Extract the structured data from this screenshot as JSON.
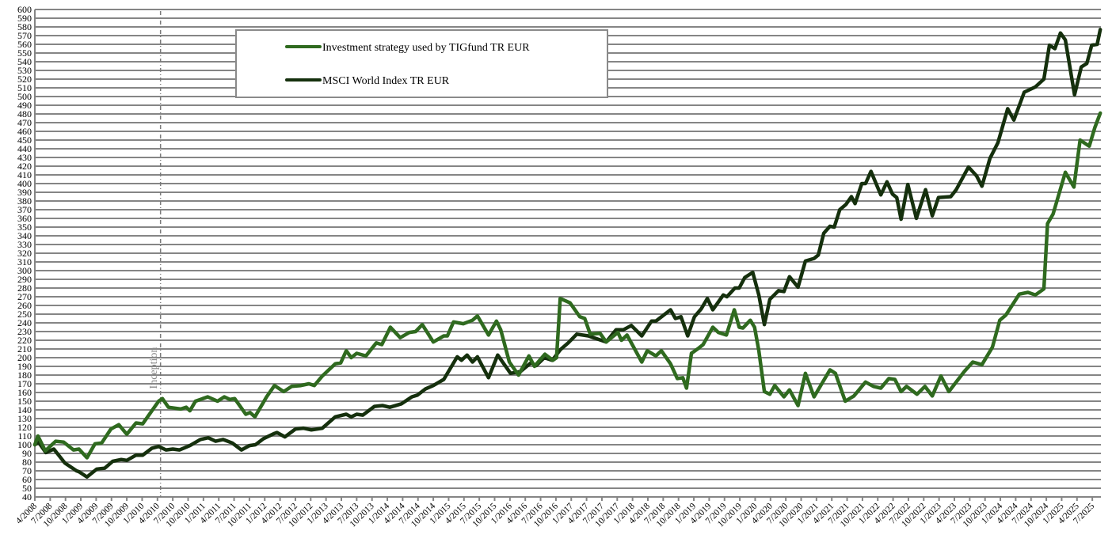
{
  "chart_data": {
    "type": "line",
    "title": "",
    "xlabel": "",
    "ylabel": "",
    "x_unit": "decimal year",
    "xlim": [
      2008.25,
      2025.63
    ],
    "ylim": [
      40,
      600
    ],
    "y_ticks": [
      40,
      50,
      60,
      70,
      80,
      90,
      100,
      110,
      120,
      130,
      140,
      150,
      160,
      170,
      180,
      190,
      200,
      210,
      220,
      230,
      240,
      250,
      260,
      270,
      280,
      290,
      300,
      310,
      320,
      330,
      340,
      350,
      360,
      370,
      380,
      390,
      400,
      410,
      420,
      430,
      440,
      450,
      460,
      470,
      480,
      490,
      500,
      510,
      520,
      530,
      540,
      550,
      560,
      570,
      580,
      590,
      600
    ],
    "x_tick_start": 2008.25,
    "x_tick_step": 0.25,
    "x_tick_labels": [
      "4/2008",
      "7/2008",
      "10/2008",
      "1/2009",
      "4/2009",
      "7/2009",
      "10/2009",
      "1/2010",
      "4/2010",
      "7/2010",
      "10/2010",
      "1/2011",
      "4/2011",
      "7/2011",
      "10/2011",
      "1/2012",
      "4/2012",
      "7/2012",
      "10/2012",
      "1/2013",
      "4/2013",
      "7/2013",
      "10/2013",
      "1/2014",
      "4/2014",
      "7/2014",
      "10/2014",
      "1/2015",
      "4/2015",
      "7/2015",
      "10/2015",
      "1/2016",
      "4/2016",
      "7/2016",
      "10/2016",
      "1/2017",
      "4/2017",
      "7/2017",
      "10/2017",
      "1/2018",
      "4/2018",
      "7/2018",
      "10/2018",
      "1/2019",
      "4/2019",
      "7/2019",
      "10/2019",
      "1/2020",
      "4/2020",
      "7/2020",
      "10/2020",
      "1/2021",
      "4/2021",
      "7/2021",
      "10/2021",
      "1/2022",
      "4/2022",
      "7/2022",
      "10/2022",
      "1/2023",
      "4/2023",
      "7/2023",
      "10/2023",
      "1/2024",
      "4/2024",
      "7/2024",
      "10/2024",
      "1/2025",
      "4/2025",
      "7/2025"
    ],
    "grid": "horizontal",
    "legend_placement": "top-center",
    "annotations": [
      {
        "label": "Inception",
        "x": 2010.3
      }
    ],
    "series": [
      {
        "name": "Investment strategy used by TIGfund TR EUR",
        "color": "#2f6a1f",
        "points": [
          [
            2008.25,
            100
          ],
          [
            2008.3,
            110
          ],
          [
            2008.42,
            93
          ],
          [
            2008.59,
            104
          ],
          [
            2008.72,
            103
          ],
          [
            2008.88,
            94
          ],
          [
            2008.97,
            95
          ],
          [
            2009.1,
            85
          ],
          [
            2009.23,
            101
          ],
          [
            2009.34,
            102
          ],
          [
            2009.49,
            118
          ],
          [
            2009.62,
            123
          ],
          [
            2009.75,
            112
          ],
          [
            2009.9,
            125
          ],
          [
            2010.01,
            124
          ],
          [
            2010.27,
            150
          ],
          [
            2010.33,
            153
          ],
          [
            2010.43,
            143
          ],
          [
            2010.63,
            141
          ],
          [
            2010.72,
            143
          ],
          [
            2010.78,
            139
          ],
          [
            2010.87,
            150
          ],
          [
            2011.07,
            155
          ],
          [
            2011.23,
            150
          ],
          [
            2011.34,
            155
          ],
          [
            2011.43,
            152
          ],
          [
            2011.51,
            153
          ],
          [
            2011.69,
            135
          ],
          [
            2011.76,
            137
          ],
          [
            2011.84,
            132
          ],
          [
            2012.03,
            155
          ],
          [
            2012.16,
            168
          ],
          [
            2012.31,
            161
          ],
          [
            2012.44,
            167
          ],
          [
            2012.59,
            168
          ],
          [
            2012.72,
            170
          ],
          [
            2012.81,
            168
          ],
          [
            2012.94,
            179
          ],
          [
            2013.15,
            193
          ],
          [
            2013.24,
            194
          ],
          [
            2013.33,
            208
          ],
          [
            2013.41,
            200
          ],
          [
            2013.5,
            205
          ],
          [
            2013.65,
            202
          ],
          [
            2013.82,
            217
          ],
          [
            2013.91,
            215
          ],
          [
            2014.05,
            235
          ],
          [
            2014.21,
            223
          ],
          [
            2014.36,
            229
          ],
          [
            2014.46,
            230
          ],
          [
            2014.57,
            238
          ],
          [
            2014.75,
            218
          ],
          [
            2014.92,
            225
          ],
          [
            2014.98,
            225
          ],
          [
            2015.08,
            241
          ],
          [
            2015.24,
            239
          ],
          [
            2015.39,
            243
          ],
          [
            2015.47,
            248
          ],
          [
            2015.65,
            226
          ],
          [
            2015.78,
            242
          ],
          [
            2015.85,
            232
          ],
          [
            2015.99,
            195
          ],
          [
            2016.14,
            180
          ],
          [
            2016.31,
            202
          ],
          [
            2016.4,
            190
          ],
          [
            2016.57,
            204
          ],
          [
            2016.7,
            197
          ],
          [
            2016.76,
            200
          ],
          [
            2016.82,
            268
          ],
          [
            2016.98,
            263
          ],
          [
            2017.14,
            247
          ],
          [
            2017.22,
            245
          ],
          [
            2017.31,
            227
          ],
          [
            2017.47,
            228
          ],
          [
            2017.57,
            218
          ],
          [
            2017.76,
            229
          ],
          [
            2017.82,
            220
          ],
          [
            2017.91,
            226
          ],
          [
            2018.15,
            195
          ],
          [
            2018.24,
            208
          ],
          [
            2018.38,
            202
          ],
          [
            2018.47,
            208
          ],
          [
            2018.62,
            193
          ],
          [
            2018.73,
            176
          ],
          [
            2018.82,
            177
          ],
          [
            2018.88,
            165
          ],
          [
            2018.96,
            205
          ],
          [
            2019.08,
            211
          ],
          [
            2019.15,
            215
          ],
          [
            2019.31,
            235
          ],
          [
            2019.4,
            229
          ],
          [
            2019.53,
            226
          ],
          [
            2019.66,
            255
          ],
          [
            2019.74,
            235
          ],
          [
            2019.8,
            234
          ],
          [
            2019.92,
            243
          ],
          [
            2019.99,
            235
          ],
          [
            2020.06,
            208
          ],
          [
            2020.15,
            161
          ],
          [
            2020.24,
            158
          ],
          [
            2020.32,
            168
          ],
          [
            2020.47,
            155
          ],
          [
            2020.56,
            163
          ],
          [
            2020.7,
            145
          ],
          [
            2020.82,
            182
          ],
          [
            2020.96,
            155
          ],
          [
            2021.22,
            186
          ],
          [
            2021.31,
            182
          ],
          [
            2021.47,
            150
          ],
          [
            2021.61,
            156
          ],
          [
            2021.8,
            172
          ],
          [
            2021.93,
            167
          ],
          [
            2022.05,
            165
          ],
          [
            2022.18,
            176
          ],
          [
            2022.28,
            175
          ],
          [
            2022.38,
            161
          ],
          [
            2022.47,
            167
          ],
          [
            2022.64,
            158
          ],
          [
            2022.77,
            167
          ],
          [
            2022.89,
            156
          ],
          [
            2023.03,
            179
          ],
          [
            2023.16,
            161
          ],
          [
            2023.41,
            184
          ],
          [
            2023.55,
            195
          ],
          [
            2023.7,
            192
          ],
          [
            2023.87,
            212
          ],
          [
            2023.99,
            243
          ],
          [
            2024.09,
            249
          ],
          [
            2024.31,
            273
          ],
          [
            2024.45,
            275
          ],
          [
            2024.57,
            272
          ],
          [
            2024.71,
            279
          ],
          [
            2024.77,
            354
          ],
          [
            2024.86,
            365
          ],
          [
            2025.06,
            413
          ],
          [
            2025.2,
            396
          ],
          [
            2025.3,
            450
          ],
          [
            2025.45,
            443
          ],
          [
            2025.54,
            464
          ],
          [
            2025.63,
            481
          ]
        ]
      },
      {
        "name": "MSCI World Index TR EUR",
        "color": "#15300d",
        "points": [
          [
            2008.25,
            100
          ],
          [
            2008.31,
            103
          ],
          [
            2008.43,
            91
          ],
          [
            2008.56,
            95
          ],
          [
            2008.74,
            79
          ],
          [
            2008.93,
            70
          ],
          [
            2008.97,
            69
          ],
          [
            2009.1,
            63
          ],
          [
            2009.26,
            72
          ],
          [
            2009.39,
            73
          ],
          [
            2009.52,
            81
          ],
          [
            2009.66,
            83
          ],
          [
            2009.75,
            82
          ],
          [
            2009.9,
            88
          ],
          [
            2010.01,
            88
          ],
          [
            2010.16,
            96
          ],
          [
            2010.27,
            98
          ],
          [
            2010.39,
            94
          ],
          [
            2010.5,
            95
          ],
          [
            2010.61,
            94
          ],
          [
            2010.78,
            99
          ],
          [
            2010.95,
            106
          ],
          [
            2011.08,
            108
          ],
          [
            2011.2,
            104
          ],
          [
            2011.32,
            106
          ],
          [
            2011.47,
            102
          ],
          [
            2011.62,
            94
          ],
          [
            2011.75,
            99
          ],
          [
            2011.85,
            100
          ],
          [
            2011.98,
            107
          ],
          [
            2012.16,
            113
          ],
          [
            2012.2,
            114
          ],
          [
            2012.33,
            109
          ],
          [
            2012.5,
            118
          ],
          [
            2012.63,
            119
          ],
          [
            2012.76,
            117
          ],
          [
            2012.94,
            119
          ],
          [
            2013.15,
            132
          ],
          [
            2013.33,
            135
          ],
          [
            2013.41,
            132
          ],
          [
            2013.5,
            135
          ],
          [
            2013.6,
            134
          ],
          [
            2013.79,
            144
          ],
          [
            2013.92,
            145
          ],
          [
            2014.04,
            143
          ],
          [
            2014.23,
            147
          ],
          [
            2014.4,
            155
          ],
          [
            2014.49,
            157
          ],
          [
            2014.62,
            164
          ],
          [
            2014.75,
            168
          ],
          [
            2014.92,
            175
          ],
          [
            2015.14,
            201
          ],
          [
            2015.21,
            197
          ],
          [
            2015.3,
            203
          ],
          [
            2015.39,
            195
          ],
          [
            2015.47,
            201
          ],
          [
            2015.65,
            177
          ],
          [
            2015.8,
            203
          ],
          [
            2016.01,
            182
          ],
          [
            2016.17,
            184
          ],
          [
            2016.34,
            194
          ],
          [
            2016.43,
            191
          ],
          [
            2016.56,
            200
          ],
          [
            2016.69,
            197
          ],
          [
            2016.82,
            209
          ],
          [
            2016.95,
            217
          ],
          [
            2017.09,
            227
          ],
          [
            2017.28,
            225
          ],
          [
            2017.57,
            218
          ],
          [
            2017.73,
            232
          ],
          [
            2017.85,
            232
          ],
          [
            2017.98,
            237
          ],
          [
            2018.15,
            225
          ],
          [
            2018.31,
            242
          ],
          [
            2018.38,
            242
          ],
          [
            2018.62,
            255
          ],
          [
            2018.7,
            245
          ],
          [
            2018.79,
            247
          ],
          [
            2018.9,
            225
          ],
          [
            2019.01,
            247
          ],
          [
            2019.12,
            256
          ],
          [
            2019.22,
            268
          ],
          [
            2019.31,
            255
          ],
          [
            2019.48,
            272
          ],
          [
            2019.54,
            270
          ],
          [
            2019.67,
            280
          ],
          [
            2019.74,
            280
          ],
          [
            2019.83,
            292
          ],
          [
            2019.96,
            298
          ],
          [
            2020.06,
            272
          ],
          [
            2020.15,
            238
          ],
          [
            2020.24,
            267
          ],
          [
            2020.38,
            277
          ],
          [
            2020.47,
            276
          ],
          [
            2020.56,
            293
          ],
          [
            2020.7,
            281
          ],
          [
            2020.82,
            311
          ],
          [
            2020.96,
            314
          ],
          [
            2021.03,
            318
          ],
          [
            2021.12,
            343
          ],
          [
            2021.22,
            351
          ],
          [
            2021.29,
            350
          ],
          [
            2021.38,
            370
          ],
          [
            2021.48,
            376
          ],
          [
            2021.57,
            385
          ],
          [
            2021.63,
            377
          ],
          [
            2021.74,
            400
          ],
          [
            2021.8,
            400
          ],
          [
            2021.89,
            414
          ],
          [
            2022.05,
            387
          ],
          [
            2022.15,
            402
          ],
          [
            2022.24,
            388
          ],
          [
            2022.31,
            384
          ],
          [
            2022.38,
            359
          ],
          [
            2022.49,
            399
          ],
          [
            2022.63,
            360
          ],
          [
            2022.78,
            393
          ],
          [
            2022.89,
            363
          ],
          [
            2022.99,
            384
          ],
          [
            2023.19,
            385
          ],
          [
            2023.28,
            393
          ],
          [
            2023.48,
            419
          ],
          [
            2023.61,
            409
          ],
          [
            2023.7,
            397
          ],
          [
            2023.83,
            429
          ],
          [
            2023.96,
            447
          ],
          [
            2024.12,
            486
          ],
          [
            2024.22,
            473
          ],
          [
            2024.39,
            505
          ],
          [
            2024.57,
            511
          ],
          [
            2024.71,
            520
          ],
          [
            2024.8,
            559
          ],
          [
            2024.89,
            555
          ],
          [
            2024.98,
            573
          ],
          [
            2025.06,
            565
          ],
          [
            2025.21,
            502
          ],
          [
            2025.32,
            534
          ],
          [
            2025.41,
            538
          ],
          [
            2025.49,
            559
          ],
          [
            2025.58,
            560
          ],
          [
            2025.63,
            577
          ]
        ]
      }
    ]
  }
}
